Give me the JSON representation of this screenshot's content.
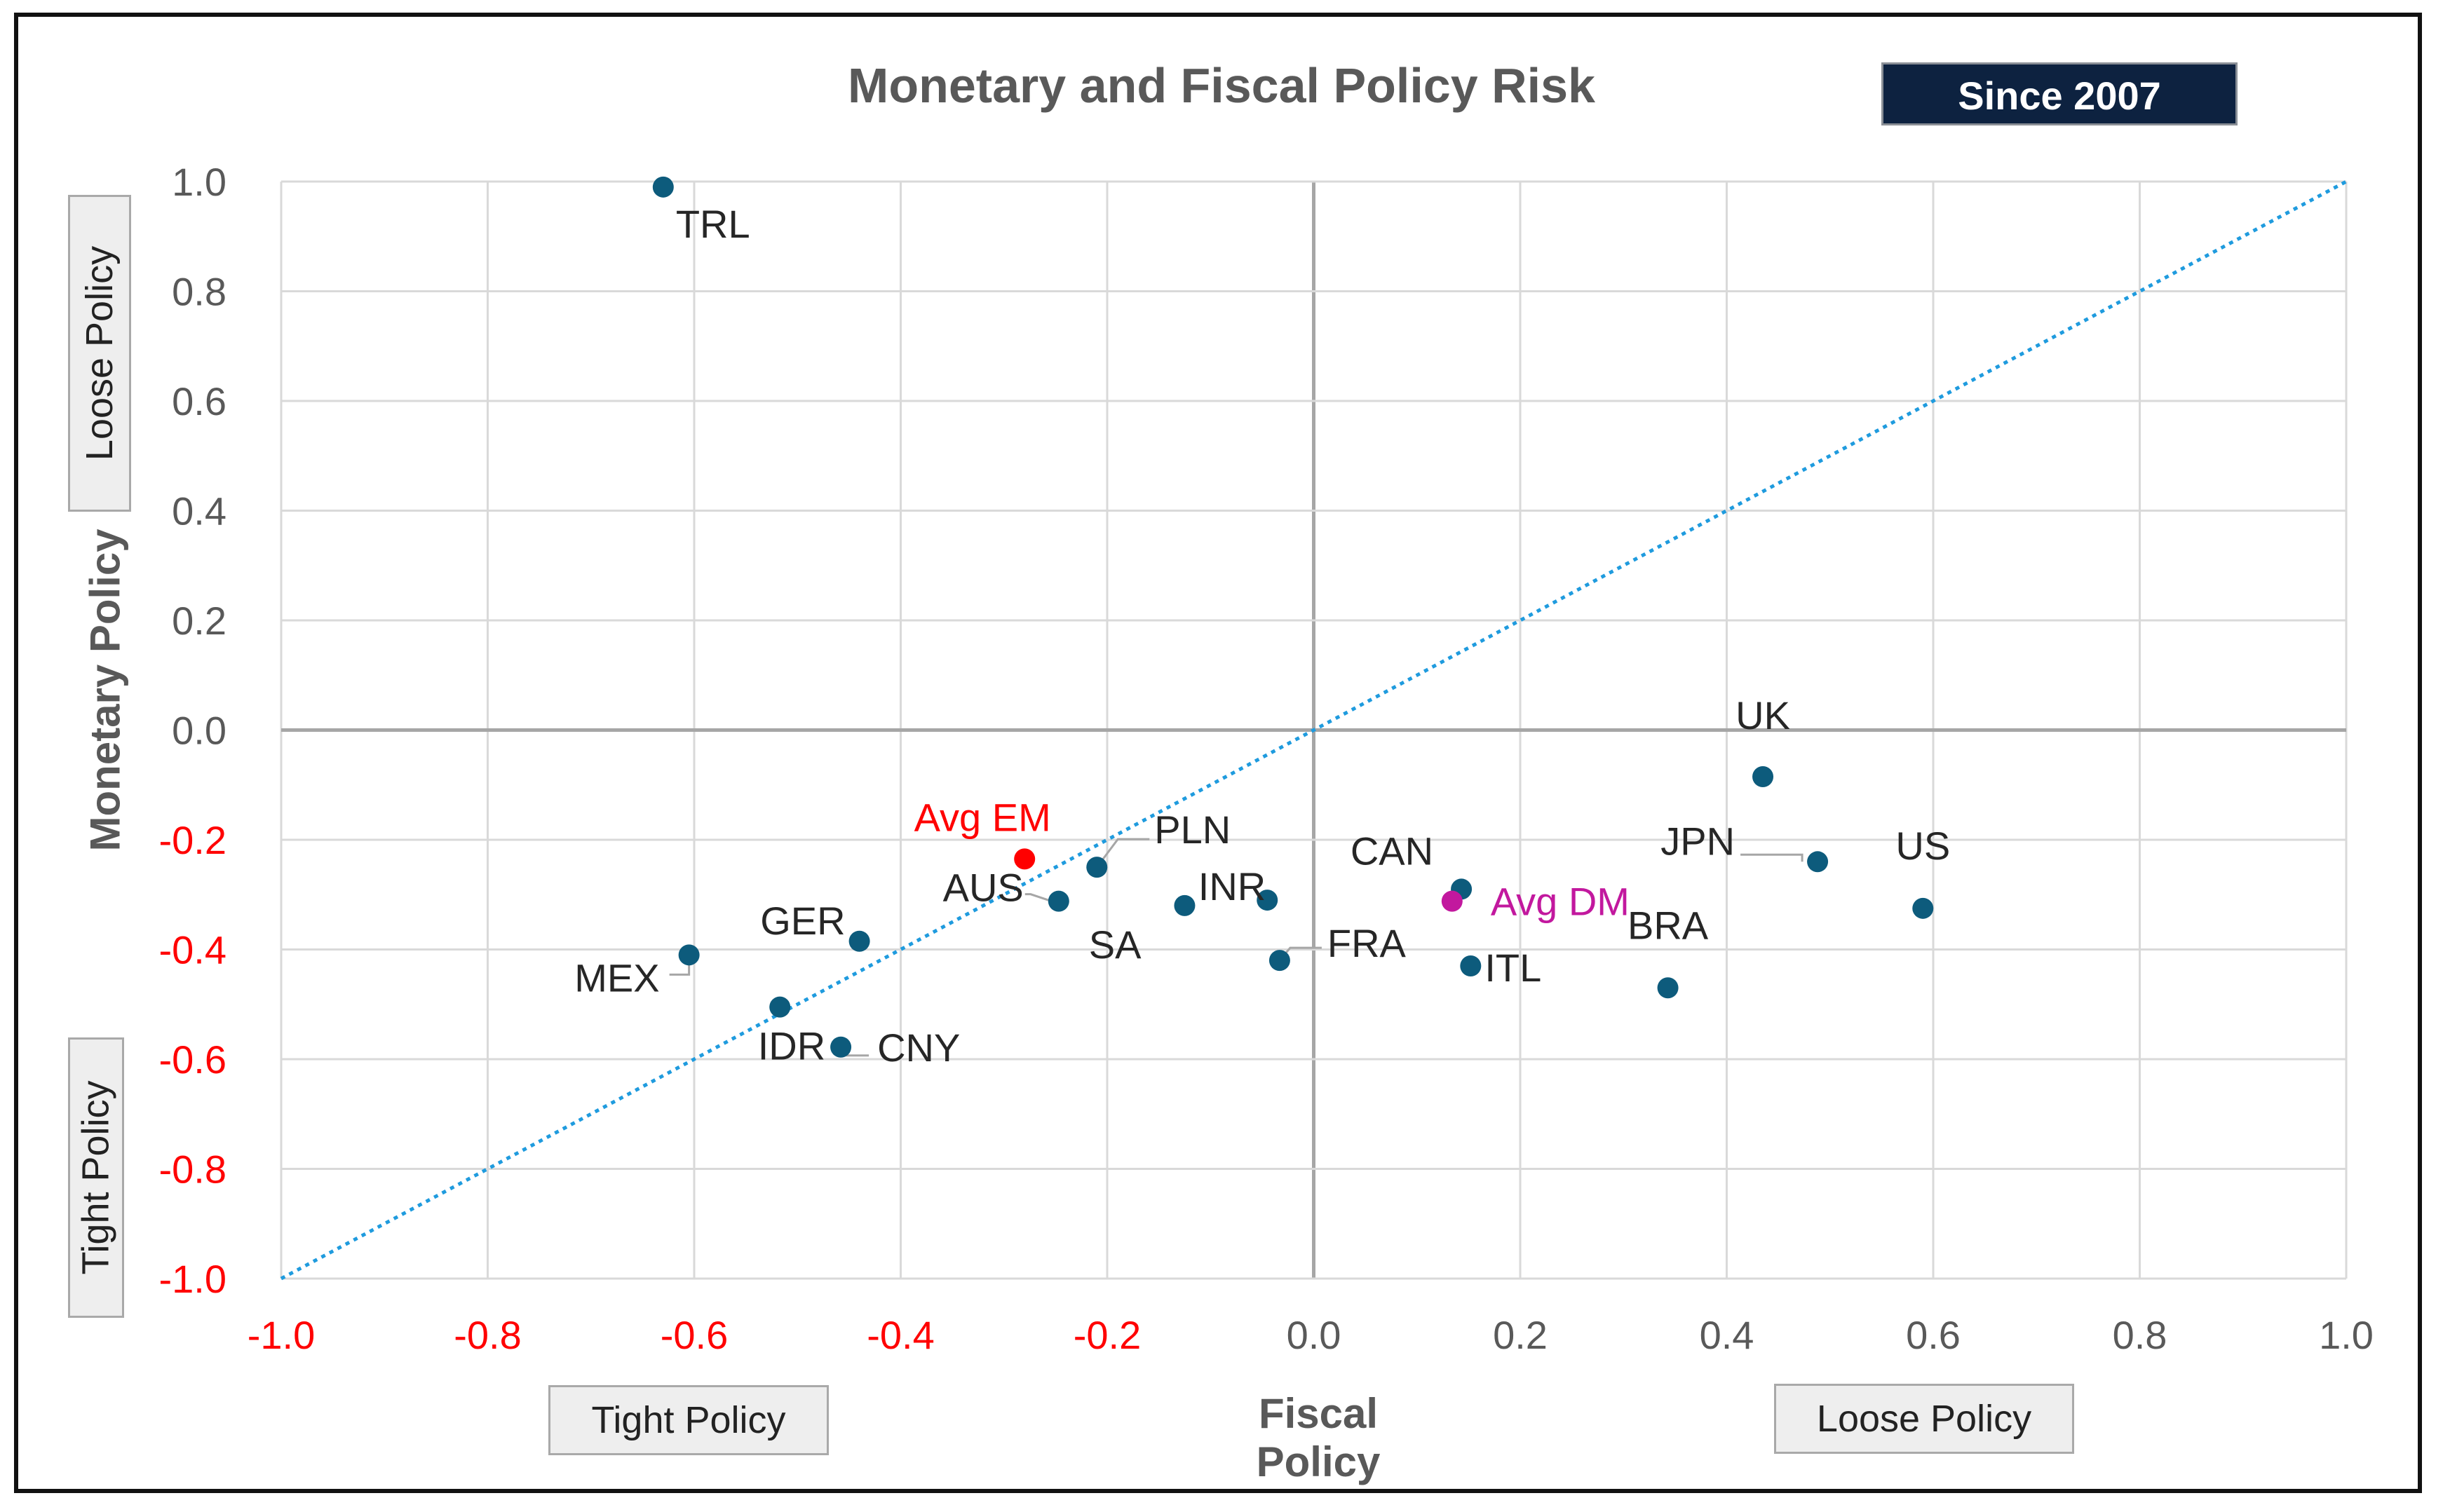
{
  "chart_data": {
    "type": "scatter",
    "title": "Monetary and Fiscal Policy Risk",
    "badge": "Since 2007",
    "xlabel": "Fiscal Policy",
    "ylabel": "Monetary Policy",
    "xlim": [
      -1.0,
      1.0
    ],
    "ylim": [
      -1.0,
      1.0
    ],
    "grid": true,
    "x_ticks": [
      "-1.0",
      "-0.8",
      "-0.6",
      "-0.4",
      "-0.2",
      "0.0",
      "0.2",
      "0.4",
      "0.6",
      "0.8",
      "1.0"
    ],
    "y_ticks": [
      "1.0",
      "0.8",
      "0.6",
      "0.4",
      "0.2",
      "0.0",
      "-0.2",
      "-0.4",
      "-0.6",
      "-0.8",
      "-1.0"
    ],
    "x_tick_colors": [
      "#ff0000",
      "#ff0000",
      "#ff0000",
      "#ff0000",
      "#ff0000",
      "#595959",
      "#595959",
      "#595959",
      "#595959",
      "#595959",
      "#595959"
    ],
    "y_tick_colors": [
      "#595959",
      "#595959",
      "#595959",
      "#595959",
      "#595959",
      "#595959",
      "#ff0000",
      "#ff0000",
      "#ff0000",
      "#ff0000",
      "#ff0000"
    ],
    "reference_line": {
      "name": "45-degree line",
      "from": [
        -1.0,
        -1.0
      ],
      "to": [
        1.0,
        1.0
      ],
      "style": "dotted",
      "color": "#1f9bde"
    },
    "points": [
      {
        "label": "TRL",
        "x": -0.63,
        "y": 0.99,
        "color": "#0d5b7c"
      },
      {
        "label": "UK",
        "x": 0.435,
        "y": -0.085,
        "color": "#0d5b7c"
      },
      {
        "label": "JPN",
        "x": 0.488,
        "y": -0.24,
        "color": "#0d5b7c"
      },
      {
        "label": "US",
        "x": 0.59,
        "y": -0.325,
        "color": "#0d5b7c"
      },
      {
        "label": "BRA",
        "x": 0.343,
        "y": -0.47,
        "color": "#0d5b7c"
      },
      {
        "label": "CAN",
        "x": 0.143,
        "y": -0.29,
        "color": "#0d5b7c"
      },
      {
        "label": "ITL",
        "x": 0.152,
        "y": -0.43,
        "color": "#0d5b7c"
      },
      {
        "label": "FRA",
        "x": -0.033,
        "y": -0.42,
        "color": "#0d5b7c"
      },
      {
        "label": "INR",
        "x": -0.045,
        "y": -0.31,
        "color": "#0d5b7c"
      },
      {
        "label": "SA",
        "x": -0.125,
        "y": -0.32,
        "color": "#0d5b7c"
      },
      {
        "label": "PLN",
        "x": -0.21,
        "y": -0.25,
        "color": "#0d5b7c"
      },
      {
        "label": "AUS",
        "x": -0.247,
        "y": -0.312,
        "color": "#0d5b7c"
      },
      {
        "label": "GER",
        "x": -0.44,
        "y": -0.385,
        "color": "#0d5b7c"
      },
      {
        "label": "MEX",
        "x": -0.605,
        "y": -0.41,
        "color": "#0d5b7c"
      },
      {
        "label": "IDR",
        "x": -0.517,
        "y": -0.505,
        "color": "#0d5b7c"
      },
      {
        "label": "CNY",
        "x": -0.458,
        "y": -0.578,
        "color": "#0d5b7c"
      },
      {
        "label": "Avg EM",
        "x": -0.28,
        "y": -0.235,
        "color": "#ff0000"
      },
      {
        "label": "Avg DM",
        "x": 0.134,
        "y": -0.312,
        "color": "#c2189e"
      }
    ],
    "y_boxes": {
      "top": "Loose Policy",
      "bottom": "Tight Policy"
    },
    "x_boxes": {
      "left": "Tight Policy",
      "right": "Loose Policy"
    }
  }
}
